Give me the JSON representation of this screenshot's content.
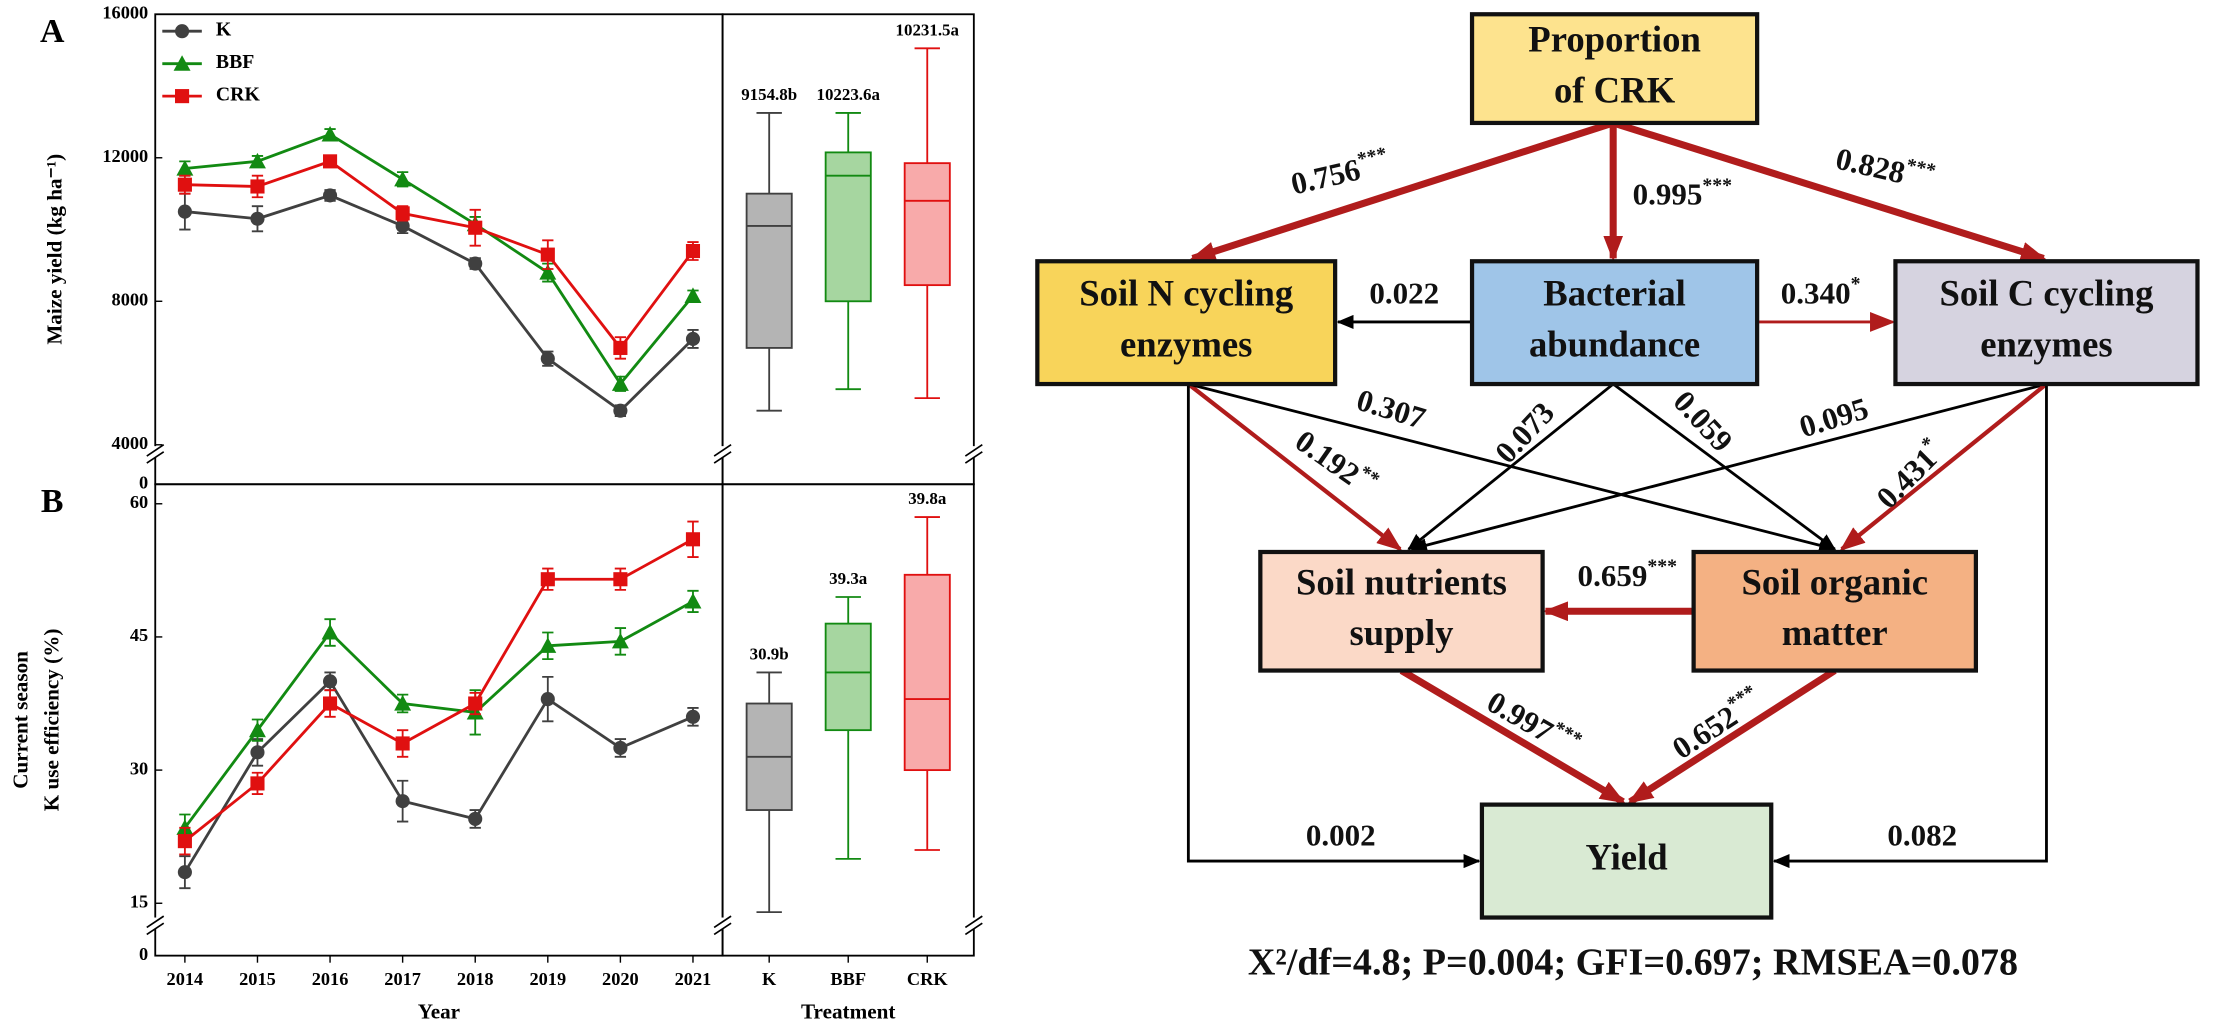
{
  "chart_data": [
    {
      "type": "line",
      "panel_label": "A",
      "y_label": [
        "Maize yield (kg ha⁻¹)"
      ],
      "ylim": [
        2900,
        16000
      ],
      "yticks": [
        4000,
        8000,
        12000,
        16000
      ],
      "break_tick": 0,
      "legend": "upper left",
      "series": [
        {
          "name": "K",
          "color": "#404040",
          "marker": "circle",
          "values": [
            10500,
            10300,
            10950,
            10100,
            9050,
            6400,
            4950,
            6950
          ],
          "errors": [
            500,
            350,
            150,
            200,
            150,
            200,
            150,
            250
          ]
        },
        {
          "name": "BBF",
          "color": "#128a12",
          "marker": "triangle",
          "values": [
            11700,
            11900,
            12650,
            11400,
            10150,
            8800,
            5700,
            8150
          ],
          "errors": [
            200,
            150,
            150,
            200,
            200,
            250,
            200,
            150
          ]
        },
        {
          "name": "CRK",
          "color": "#e01010",
          "marker": "square",
          "values": [
            11250,
            11200,
            11900,
            10450,
            10050,
            9300,
            6700,
            9400
          ],
          "errors": [
            250,
            300,
            150,
            200,
            500,
            400,
            300,
            250
          ]
        }
      ]
    },
    {
      "type": "box",
      "ylim": [
        2900,
        16000
      ],
      "boxes": [
        {
          "color": "#404040",
          "fill": "#b4b4b4",
          "min": 4950,
          "q1": 6700,
          "median": 10100,
          "q3": 11000,
          "max": 13250,
          "label": "9154.8b"
        },
        {
          "color": "#128a12",
          "fill": "#a6d6a0",
          "min": 5550,
          "q1": 8000,
          "median": 11500,
          "q3": 12150,
          "max": 13250,
          "label": "10223.6a"
        },
        {
          "color": "#e01010",
          "fill": "#f8aaaa",
          "min": 5300,
          "q1": 8450,
          "median": 10800,
          "q3": 11850,
          "max": 15050,
          "label": "10231.5a"
        }
      ]
    },
    {
      "type": "line",
      "panel_label": "B",
      "y_label": [
        "Current season",
        "K use efficiency (%)"
      ],
      "x_label": "Year",
      "ylim": [
        9.1,
        62.2
      ],
      "yticks": [
        15,
        30,
        45,
        60
      ],
      "break_tick": 0,
      "categories": [
        "2014",
        "2015",
        "2016",
        "2017",
        "2018",
        "2019",
        "2020",
        "2021"
      ],
      "series": [
        {
          "name": "K",
          "color": "#404040",
          "marker": "circle",
          "values": [
            18.5,
            32,
            40,
            26.5,
            24.5,
            38,
            32.5,
            36
          ],
          "errors": [
            1.8,
            1.5,
            1,
            2.3,
            1,
            2.5,
            1,
            1
          ]
        },
        {
          "name": "BBF",
          "color": "#128a12",
          "marker": "triangle",
          "values": [
            23.5,
            34.5,
            45.5,
            37.5,
            36.5,
            44,
            44.5,
            49
          ],
          "errors": [
            1.5,
            1.2,
            1.5,
            1,
            2.5,
            1.5,
            1.5,
            1.2
          ]
        },
        {
          "name": "CRK",
          "color": "#e01010",
          "marker": "square",
          "values": [
            22,
            28.5,
            37.5,
            33,
            37.5,
            51.5,
            51.5,
            56
          ],
          "errors": [
            1.5,
            1.2,
            1.5,
            1.5,
            1.2,
            1.2,
            1.2,
            2
          ]
        }
      ]
    },
    {
      "type": "box",
      "ylim": [
        9.1,
        62.2
      ],
      "x_label": "Treatment",
      "categories": [
        "K",
        "BBF",
        "CRK"
      ],
      "boxes": [
        {
          "color": "#404040",
          "fill": "#b4b4b4",
          "min": 14,
          "q1": 25.5,
          "median": 31.5,
          "q3": 37.5,
          "max": 41,
          "label": "30.9b"
        },
        {
          "color": "#128a12",
          "fill": "#a6d6a0",
          "min": 20,
          "q1": 34.5,
          "median": 41,
          "q3": 46.5,
          "max": 49.5,
          "label": "39.3a"
        },
        {
          "color": "#e01010",
          "fill": "#f8aaaa",
          "min": 21,
          "q1": 30,
          "median": 38,
          "q3": 52,
          "max": 58.5,
          "label": "39.8a"
        }
      ]
    }
  ],
  "diagram": {
    "nodes": [
      {
        "label": [
          "Proportion",
          "of CRK"
        ],
        "color": "#fde38e"
      },
      {
        "label": [
          "Soil N cycling",
          "enzymes"
        ],
        "color": "#f8d45a"
      },
      {
        "label": [
          "Bacterial",
          "abundance"
        ],
        "color": "#9fc5e8"
      },
      {
        "label": [
          "Soil C cycling",
          "enzymes"
        ],
        "color": "#d6d3e0"
      },
      {
        "label": [
          "Soil nutrients",
          "supply"
        ],
        "color": "#fbd9c7"
      },
      {
        "label": [
          "Soil organic",
          "matter"
        ],
        "color": "#f4b183"
      },
      {
        "label": [
          "Yield"
        ],
        "color": "#d9ead3"
      }
    ],
    "edges": [
      {
        "label": "0.756",
        "sig": "***",
        "color": "#b01c1c"
      },
      {
        "label": "0.995",
        "sig": "***",
        "color": "#b01c1c"
      },
      {
        "label": "0.828",
        "sig": "***",
        "color": "#b01c1c"
      },
      {
        "label": "0.022",
        "color": "#000000"
      },
      {
        "label": "0.340",
        "sig": "*",
        "color": "#b01c1c"
      },
      {
        "label": "0.192",
        "sig": "**",
        "color": "#b01c1c"
      },
      {
        "label": "0.307",
        "color": "#000000"
      },
      {
        "label": "0.073",
        "color": "#000000"
      },
      {
        "label": "0.059",
        "color": "#000000"
      },
      {
        "label": "0.095",
        "color": "#000000"
      },
      {
        "label": "0.431",
        "sig": "*",
        "color": "#b01c1c"
      },
      {
        "label": "0.659",
        "sig": "***",
        "color": "#b01c1c"
      },
      {
        "label": "0.997",
        "sig": "***",
        "color": "#b01c1c"
      },
      {
        "label": "0.652",
        "sig": "***",
        "color": "#b01c1c"
      },
      {
        "label": "0.002",
        "color": "#000000"
      },
      {
        "label": "0.082",
        "color": "#000000"
      }
    ],
    "fit": "X²/df=4.8; P=0.004; GFI=0.697; RMSEA=0.078"
  }
}
